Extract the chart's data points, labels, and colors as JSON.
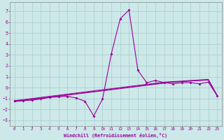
{
  "xlabel": "Windchill (Refroidissement éolien,°C)",
  "bg_color": "#cce8e8",
  "grid_color": "#aacccc",
  "line_color": "#990099",
  "xlim": [
    -0.5,
    23.5
  ],
  "ylim": [
    -3.5,
    7.8
  ],
  "xticks": [
    0,
    1,
    2,
    3,
    4,
    5,
    6,
    7,
    8,
    9,
    10,
    11,
    12,
    13,
    14,
    15,
    16,
    17,
    18,
    19,
    20,
    21,
    22,
    23
  ],
  "yticks": [
    -3,
    -2,
    -1,
    0,
    1,
    2,
    3,
    4,
    5,
    6,
    7
  ],
  "series1_y": [
    -1.2,
    -1.2,
    -1.15,
    -1.05,
    -0.9,
    -0.85,
    -0.8,
    -0.95,
    -1.25,
    -2.6,
    -1.05,
    3.1,
    6.3,
    7.1,
    1.6,
    0.45,
    0.65,
    0.45,
    0.35,
    0.45,
    0.45,
    0.35,
    0.5,
    -0.75
  ],
  "trend1_y": [
    -1.3,
    -1.2,
    -1.1,
    -1.0,
    -0.9,
    -0.8,
    -0.7,
    -0.6,
    -0.5,
    -0.4,
    -0.3,
    -0.2,
    -0.1,
    0.0,
    0.1,
    0.2,
    0.3,
    0.4,
    0.5,
    0.55,
    0.6,
    0.65,
    0.7,
    -0.75
  ],
  "trend2_y": [
    -1.25,
    -1.15,
    -1.05,
    -0.95,
    -0.85,
    -0.75,
    -0.65,
    -0.55,
    -0.45,
    -0.35,
    -0.25,
    -0.15,
    -0.05,
    0.05,
    0.15,
    0.25,
    0.35,
    0.45,
    0.5,
    0.55,
    0.6,
    0.65,
    0.7,
    -0.75
  ],
  "trend3_y": [
    -1.2,
    -1.1,
    -1.0,
    -0.9,
    -0.8,
    -0.7,
    -0.6,
    -0.5,
    -0.4,
    -0.3,
    -0.2,
    -0.1,
    0.0,
    0.1,
    0.2,
    0.3,
    0.4,
    0.5,
    0.55,
    0.6,
    0.65,
    0.7,
    0.75,
    -0.7
  ]
}
